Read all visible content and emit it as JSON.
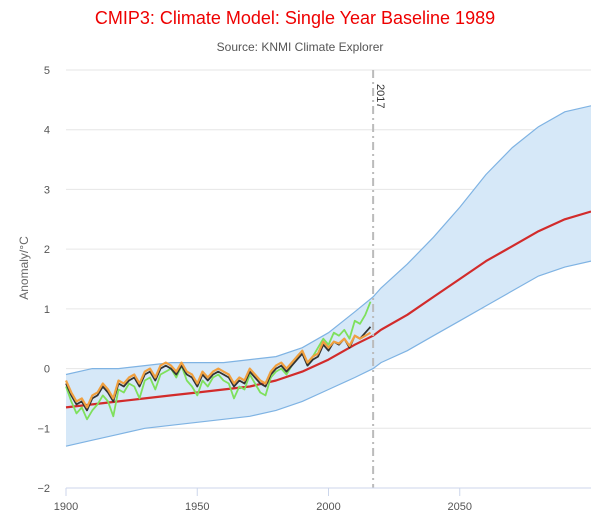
{
  "chart_data": {
    "type": "line",
    "title": "CMIP3: Climate Model: Single Year Baseline 1989",
    "subtitle": "Source: KNMI Climate Explorer",
    "xlabel": "",
    "ylabel": "Anomaly/°C",
    "xlim": [
      1900,
      2100
    ],
    "ylim": [
      -2,
      5
    ],
    "x_ticks": [
      1900,
      1950,
      2000,
      2050
    ],
    "y_ticks": [
      -2,
      -1,
      0,
      1,
      2,
      3,
      4,
      5
    ],
    "grid": "horizontal",
    "annotation": {
      "label": "2017",
      "x": 2017
    },
    "colors": {
      "title": "#ee0000",
      "band_fill": "#d6e8f8",
      "band_edge": "#7fb3e3",
      "model_mean": "#d22b2b",
      "obs_green": "#7ee05c",
      "obs_black": "#333333",
      "obs_orange": "#f0a040",
      "marker": "#bbbbbb"
    },
    "band": {
      "x": [
        1900,
        1910,
        1920,
        1930,
        1940,
        1950,
        1960,
        1970,
        1980,
        1990,
        2000,
        2010,
        2017,
        2020,
        2030,
        2040,
        2050,
        2060,
        2070,
        2080,
        2090,
        2100
      ],
      "upper": [
        -0.1,
        0.0,
        0.0,
        0.05,
        0.1,
        0.1,
        0.1,
        0.15,
        0.2,
        0.35,
        0.6,
        0.95,
        1.2,
        1.35,
        1.75,
        2.2,
        2.7,
        3.25,
        3.7,
        4.05,
        4.3,
        4.4
      ],
      "lower": [
        -1.3,
        -1.2,
        -1.1,
        -1.0,
        -0.95,
        -0.9,
        -0.85,
        -0.8,
        -0.7,
        -0.55,
        -0.35,
        -0.15,
        0.0,
        0.1,
        0.3,
        0.55,
        0.8,
        1.05,
        1.3,
        1.55,
        1.7,
        1.8
      ]
    },
    "series": [
      {
        "x": [
          1900,
          1910,
          1920,
          1930,
          1940,
          1950,
          1960,
          1970,
          1980,
          1990,
          2000,
          2010,
          2017,
          2020,
          2030,
          2040,
          2050,
          2060,
          2070,
          2080,
          2090,
          2100
        ],
        "values": [
          -0.65,
          -0.6,
          -0.55,
          -0.5,
          -0.45,
          -0.4,
          -0.35,
          -0.3,
          -0.2,
          -0.05,
          0.15,
          0.4,
          0.55,
          0.65,
          0.9,
          1.2,
          1.5,
          1.8,
          2.05,
          2.3,
          2.5,
          2.63
        ]
      },
      {
        "x": [
          1900,
          1902,
          1904,
          1906,
          1908,
          1910,
          1912,
          1914,
          1916,
          1918,
          1920,
          1922,
          1924,
          1926,
          1928,
          1930,
          1932,
          1934,
          1936,
          1938,
          1940,
          1942,
          1944,
          1946,
          1948,
          1950,
          1952,
          1954,
          1956,
          1958,
          1960,
          1962,
          1964,
          1966,
          1968,
          1970,
          1972,
          1974,
          1976,
          1978,
          1980,
          1982,
          1984,
          1986,
          1988,
          1990,
          1992,
          1994,
          1996,
          1998,
          2000,
          2002,
          2004,
          2006,
          2008,
          2010,
          2012,
          2014,
          2016
        ],
        "values": [
          -0.3,
          -0.55,
          -0.75,
          -0.65,
          -0.85,
          -0.7,
          -0.6,
          -0.45,
          -0.55,
          -0.8,
          -0.35,
          -0.4,
          -0.25,
          -0.3,
          -0.5,
          -0.2,
          -0.15,
          -0.35,
          -0.1,
          -0.05,
          0.0,
          -0.15,
          0.05,
          -0.2,
          -0.3,
          -0.45,
          -0.2,
          -0.3,
          -0.15,
          -0.1,
          -0.2,
          -0.25,
          -0.5,
          -0.3,
          -0.35,
          -0.1,
          -0.25,
          -0.4,
          -0.45,
          -0.15,
          -0.05,
          0.0,
          -0.1,
          0.05,
          0.2,
          0.3,
          0.05,
          0.2,
          0.35,
          0.5,
          0.4,
          0.6,
          0.55,
          0.65,
          0.5,
          0.8,
          0.75,
          0.9,
          1.12
        ]
      },
      {
        "x": [
          1900,
          1902,
          1904,
          1906,
          1908,
          1910,
          1912,
          1914,
          1916,
          1918,
          1920,
          1922,
          1924,
          1926,
          1928,
          1930,
          1932,
          1934,
          1936,
          1938,
          1940,
          1942,
          1944,
          1946,
          1948,
          1950,
          1952,
          1954,
          1956,
          1958,
          1960,
          1962,
          1964,
          1966,
          1968,
          1970,
          1972,
          1974,
          1976,
          1978,
          1980,
          1982,
          1984,
          1986,
          1988,
          1990,
          1992,
          1994,
          1996,
          1998,
          2000,
          2002,
          2004,
          2006,
          2008,
          2010,
          2012,
          2014,
          2016
        ],
        "values": [
          -0.25,
          -0.45,
          -0.6,
          -0.55,
          -0.7,
          -0.5,
          -0.45,
          -0.3,
          -0.4,
          -0.55,
          -0.25,
          -0.3,
          -0.2,
          -0.15,
          -0.3,
          -0.1,
          -0.05,
          -0.2,
          0.0,
          0.05,
          0.0,
          -0.1,
          0.05,
          -0.1,
          -0.15,
          -0.3,
          -0.1,
          -0.2,
          -0.1,
          -0.05,
          -0.1,
          -0.15,
          -0.3,
          -0.2,
          -0.25,
          -0.05,
          -0.15,
          -0.25,
          -0.3,
          -0.1,
          0.0,
          0.05,
          -0.05,
          0.05,
          0.15,
          0.25,
          0.05,
          0.15,
          0.2,
          0.4,
          0.3,
          0.45,
          0.4,
          0.5,
          0.35,
          0.55,
          0.5,
          0.6,
          0.7
        ]
      },
      {
        "x": [
          1900,
          1902,
          1904,
          1906,
          1908,
          1910,
          1912,
          1914,
          1916,
          1918,
          1920,
          1922,
          1924,
          1926,
          1928,
          1930,
          1932,
          1934,
          1936,
          1938,
          1940,
          1942,
          1944,
          1946,
          1948,
          1950,
          1952,
          1954,
          1956,
          1958,
          1960,
          1962,
          1964,
          1966,
          1968,
          1970,
          1972,
          1974,
          1976,
          1978,
          1980,
          1982,
          1984,
          1986,
          1988,
          1990,
          1992,
          1994,
          1996,
          1998,
          2000,
          2002,
          2004,
          2006,
          2008,
          2010,
          2012,
          2014,
          2016
        ],
        "values": [
          -0.2,
          -0.4,
          -0.55,
          -0.5,
          -0.65,
          -0.45,
          -0.4,
          -0.25,
          -0.35,
          -0.5,
          -0.2,
          -0.25,
          -0.15,
          -0.1,
          -0.25,
          -0.05,
          0.0,
          -0.15,
          0.05,
          0.1,
          0.05,
          -0.05,
          0.1,
          -0.05,
          -0.1,
          -0.25,
          -0.05,
          -0.15,
          -0.05,
          0.0,
          -0.05,
          -0.1,
          -0.25,
          -0.15,
          -0.2,
          0.0,
          -0.1,
          -0.2,
          -0.25,
          -0.05,
          0.05,
          0.1,
          0.0,
          0.1,
          0.2,
          0.3,
          0.1,
          0.2,
          0.25,
          0.45,
          0.35,
          0.45,
          0.42,
          0.5,
          0.38,
          0.55,
          0.5,
          0.55,
          0.6
        ]
      }
    ]
  }
}
